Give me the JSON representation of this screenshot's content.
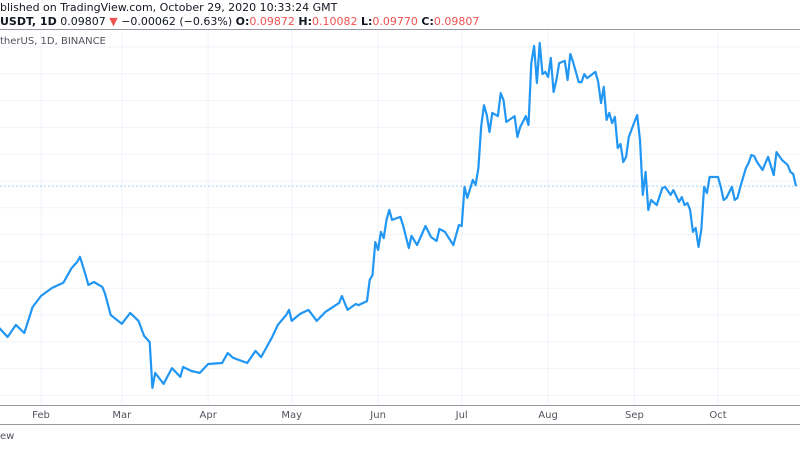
{
  "header": {
    "published": "blished on TradingView.com, October 29, 2020 10:33:24 GMT",
    "symbol": "USDT, 1D",
    "last": "0.09807",
    "change": "−0.00062 (−0.63%)",
    "change_direction_icon": "triangle-down-icon",
    "o_label": "O:",
    "o": "0.09872",
    "h_label": "H:",
    "h": "0.10082",
    "l_label": "L:",
    "l": "0.09770",
    "c_label": "C:",
    "c": "0.09807"
  },
  "legend": "therUS, 1D, BINANCE",
  "footer": "ew",
  "colors": {
    "line": "#2196f3",
    "down": "#ef5350",
    "grid": "#f0f3fa",
    "price_line": "#2196f3"
  },
  "chart_data": {
    "type": "line",
    "title": "",
    "xlabel": "",
    "ylabel": "",
    "x_ticks": [
      "Feb",
      "Mar",
      "Apr",
      "May",
      "Jun",
      "Jul",
      "Aug",
      "Sep",
      "Oct"
    ],
    "grid": true,
    "last_price": 0.09807,
    "series": [
      {
        "points": [
          [
            "2020-01-17",
            0.0452
          ],
          [
            "2020-01-20",
            0.0418
          ],
          [
            "2020-01-23",
            0.0463
          ],
          [
            "2020-01-26",
            0.0433
          ],
          [
            "2020-01-29",
            0.053
          ],
          [
            "2020-02-01",
            0.0571
          ],
          [
            "2020-02-05",
            0.0601
          ],
          [
            "2020-02-09",
            0.062
          ],
          [
            "2020-02-12",
            0.0675
          ],
          [
            "2020-02-14",
            0.0698
          ],
          [
            "2020-02-15",
            0.0717
          ],
          [
            "2020-02-17",
            0.0649
          ],
          [
            "2020-02-18",
            0.0612
          ],
          [
            "2020-02-20",
            0.0623
          ],
          [
            "2020-02-23",
            0.0605
          ],
          [
            "2020-02-24",
            0.0579
          ],
          [
            "2020-02-26",
            0.05
          ],
          [
            "2020-03-01",
            0.0467
          ],
          [
            "2020-03-04",
            0.0508
          ],
          [
            "2020-03-07",
            0.0478
          ],
          [
            "2020-03-09",
            0.0422
          ],
          [
            "2020-03-11",
            0.0399
          ],
          [
            "2020-03-12",
            0.0228
          ],
          [
            "2020-03-13",
            0.0284
          ],
          [
            "2020-03-16",
            0.0243
          ],
          [
            "2020-03-19",
            0.0302
          ],
          [
            "2020-03-22",
            0.0269
          ],
          [
            "2020-03-23",
            0.0306
          ],
          [
            "2020-03-26",
            0.0291
          ],
          [
            "2020-03-29",
            0.0284
          ],
          [
            "2020-04-01",
            0.0317
          ],
          [
            "2020-04-06",
            0.0321
          ],
          [
            "2020-04-08",
            0.0358
          ],
          [
            "2020-04-10",
            0.034
          ],
          [
            "2020-04-15",
            0.0321
          ],
          [
            "2020-04-18",
            0.0366
          ],
          [
            "2020-04-20",
            0.0343
          ],
          [
            "2020-04-24",
            0.0418
          ],
          [
            "2020-04-26",
            0.0463
          ],
          [
            "2020-04-29",
            0.05
          ],
          [
            "2020-04-30",
            0.0519
          ],
          [
            "2020-05-01",
            0.0478
          ],
          [
            "2020-05-04",
            0.0504
          ],
          [
            "2020-05-07",
            0.0519
          ],
          [
            "2020-05-10",
            0.0478
          ],
          [
            "2020-05-13",
            0.0511
          ],
          [
            "2020-05-18",
            0.0545
          ],
          [
            "2020-05-19",
            0.0571
          ],
          [
            "2020-05-21",
            0.0519
          ],
          [
            "2020-05-24",
            0.0541
          ],
          [
            "2020-05-25",
            0.0537
          ],
          [
            "2020-05-28",
            0.0552
          ],
          [
            "2020-05-29",
            0.0631
          ],
          [
            "2020-05-30",
            0.0649
          ],
          [
            "2020-05-31",
            0.0772
          ],
          [
            "2020-06-01",
            0.0743
          ],
          [
            "2020-06-02",
            0.081
          ],
          [
            "2020-06-03",
            0.0787
          ],
          [
            "2020-06-04",
            0.0855
          ],
          [
            "2020-06-05",
            0.0892
          ],
          [
            "2020-06-06",
            0.0855
          ],
          [
            "2020-06-09",
            0.0866
          ],
          [
            "2020-06-10",
            0.0832
          ],
          [
            "2020-06-12",
            0.075
          ],
          [
            "2020-06-13",
            0.0795
          ],
          [
            "2020-06-15",
            0.0761
          ],
          [
            "2020-06-18",
            0.0832
          ],
          [
            "2020-06-20",
            0.0791
          ],
          [
            "2020-06-22",
            0.0776
          ],
          [
            "2020-06-23",
            0.0821
          ],
          [
            "2020-06-25",
            0.081
          ],
          [
            "2020-06-28",
            0.0761
          ],
          [
            "2020-06-30",
            0.0836
          ],
          [
            "2020-07-01",
            0.0832
          ],
          [
            "2020-07-02",
            0.0978
          ],
          [
            "2020-07-03",
            0.0937
          ],
          [
            "2020-07-05",
            0.1004
          ],
          [
            "2020-07-06",
            0.0985
          ],
          [
            "2020-07-07",
            0.1048
          ],
          [
            "2020-07-08",
            0.1205
          ],
          [
            "2020-07-09",
            0.1283
          ],
          [
            "2020-07-10",
            0.1246
          ],
          [
            "2020-07-11",
            0.1183
          ],
          [
            "2020-07-12",
            0.1254
          ],
          [
            "2020-07-14",
            0.1242
          ],
          [
            "2020-07-15",
            0.1328
          ],
          [
            "2020-07-16",
            0.1302
          ],
          [
            "2020-07-17",
            0.122
          ],
          [
            "2020-07-20",
            0.1242
          ],
          [
            "2020-07-21",
            0.1164
          ],
          [
            "2020-07-22",
            0.1201
          ],
          [
            "2020-07-24",
            0.1242
          ],
          [
            "2020-07-25",
            0.1209
          ],
          [
            "2020-07-26",
            0.144
          ],
          [
            "2020-07-27",
            0.1504
          ],
          [
            "2020-07-28",
            0.1366
          ],
          [
            "2020-07-29",
            0.1515
          ],
          [
            "2020-07-30",
            0.1399
          ],
          [
            "2020-07-31",
            0.1407
          ],
          [
            "2020-08-01",
            0.1388
          ],
          [
            "2020-08-02",
            0.1459
          ],
          [
            "2020-08-03",
            0.1332
          ],
          [
            "2020-08-04",
            0.1377
          ],
          [
            "2020-08-05",
            0.144
          ],
          [
            "2020-08-07",
            0.1448
          ],
          [
            "2020-08-08",
            0.1377
          ],
          [
            "2020-08-09",
            0.1474
          ],
          [
            "2020-08-10",
            0.1444
          ],
          [
            "2020-08-12",
            0.1369
          ],
          [
            "2020-08-13",
            0.1369
          ],
          [
            "2020-08-14",
            0.1399
          ],
          [
            "2020-08-15",
            0.1384
          ],
          [
            "2020-08-18",
            0.1407
          ],
          [
            "2020-08-19",
            0.1369
          ],
          [
            "2020-08-20",
            0.1291
          ],
          [
            "2020-08-21",
            0.1351
          ],
          [
            "2020-08-22",
            0.1228
          ],
          [
            "2020-08-23",
            0.1254
          ],
          [
            "2020-08-24",
            0.1216
          ],
          [
            "2020-08-25",
            0.1239
          ],
          [
            "2020-08-26",
            0.1123
          ],
          [
            "2020-08-27",
            0.1138
          ],
          [
            "2020-08-28",
            0.1071
          ],
          [
            "2020-08-29",
            0.109
          ],
          [
            "2020-08-30",
            0.1164
          ],
          [
            "2020-09-01",
            0.122
          ],
          [
            "2020-09-02",
            0.1246
          ],
          [
            "2020-09-03",
            0.1153
          ],
          [
            "2020-09-04",
            0.0948
          ],
          [
            "2020-09-05",
            0.1034
          ],
          [
            "2020-09-06",
            0.0892
          ],
          [
            "2020-09-07",
            0.0929
          ],
          [
            "2020-09-09",
            0.091
          ],
          [
            "2020-09-11",
            0.0974
          ],
          [
            "2020-09-12",
            0.0978
          ],
          [
            "2020-09-14",
            0.0948
          ],
          [
            "2020-09-15",
            0.0966
          ],
          [
            "2020-09-17",
            0.0922
          ],
          [
            "2020-09-18",
            0.094
          ],
          [
            "2020-09-19",
            0.091
          ],
          [
            "2020-09-20",
            0.0918
          ],
          [
            "2020-09-21",
            0.0892
          ],
          [
            "2020-09-22",
            0.081
          ],
          [
            "2020-09-23",
            0.0825
          ],
          [
            "2020-09-24",
            0.0754
          ],
          [
            "2020-09-25",
            0.0817
          ],
          [
            "2020-09-26",
            0.0978
          ],
          [
            "2020-09-27",
            0.0955
          ],
          [
            "2020-09-28",
            0.1015
          ],
          [
            "2020-10-01",
            0.1015
          ],
          [
            "2020-10-02",
            0.0978
          ],
          [
            "2020-10-03",
            0.0929
          ],
          [
            "2020-10-04",
            0.0937
          ],
          [
            "2020-10-06",
            0.0978
          ],
          [
            "2020-10-07",
            0.0929
          ],
          [
            "2020-10-08",
            0.0937
          ],
          [
            "2020-10-09",
            0.0978
          ],
          [
            "2020-10-11",
            0.1048
          ],
          [
            "2020-10-12",
            0.1067
          ],
          [
            "2020-10-13",
            0.1097
          ],
          [
            "2020-10-14",
            0.1093
          ],
          [
            "2020-10-15",
            0.1071
          ],
          [
            "2020-10-17",
            0.1041
          ],
          [
            "2020-10-18",
            0.1067
          ],
          [
            "2020-10-19",
            0.109
          ],
          [
            "2020-10-21",
            0.1022
          ],
          [
            "2020-10-22",
            0.1108
          ],
          [
            "2020-10-24",
            0.1078
          ],
          [
            "2020-10-26",
            0.106
          ],
          [
            "2020-10-27",
            0.1034
          ],
          [
            "2020-10-28",
            0.1026
          ],
          [
            "2020-10-29",
            0.0981
          ]
        ]
      }
    ]
  }
}
